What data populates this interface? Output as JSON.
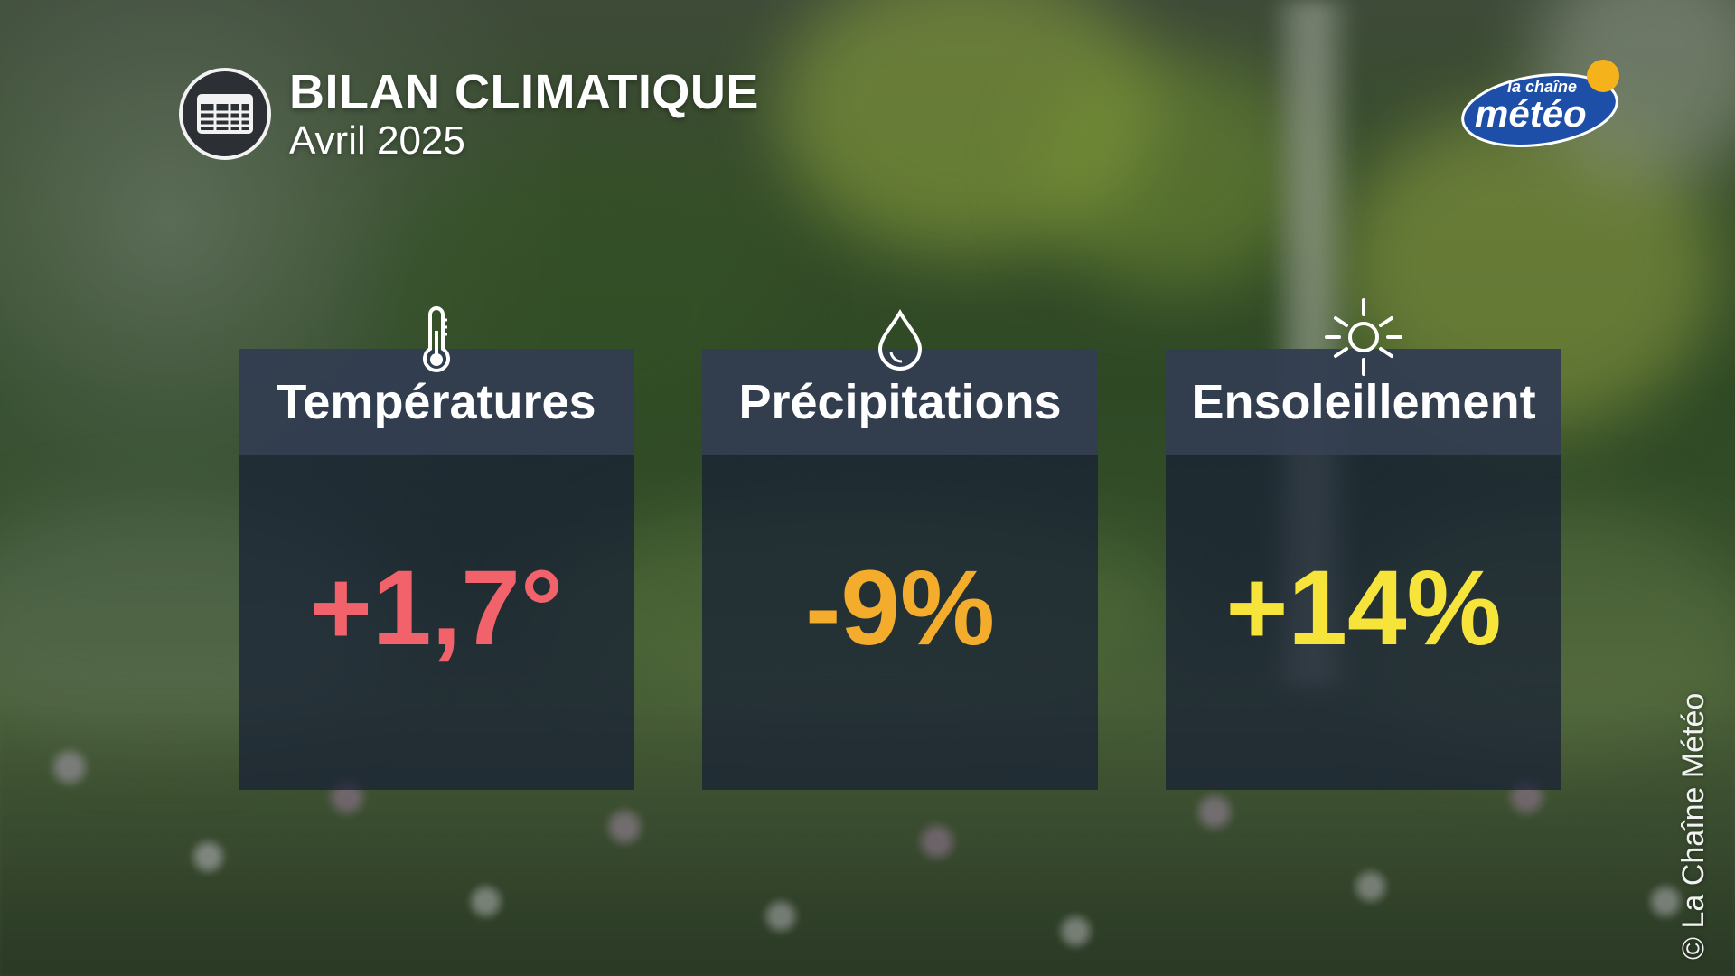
{
  "header": {
    "title": "BILAN CLIMATIQUE",
    "subtitle": "Avril 2025",
    "icon": "calendar-table-icon"
  },
  "logo": {
    "line1": "la chaîne",
    "line2": "météo",
    "colors": {
      "blue": "#1e4fa8",
      "sun": "#f5b21a"
    }
  },
  "cards": [
    {
      "label": "Températures",
      "value": "+1,7°",
      "icon": "thermometer-icon",
      "color": "#f2626a"
    },
    {
      "label": "Précipitations",
      "value": "-9%",
      "icon": "water-drop-icon",
      "color": "#f4ac2c"
    },
    {
      "label": "Ensoleillement",
      "value": "+14%",
      "icon": "sun-icon",
      "color": "#f7e43a"
    }
  ],
  "credit": "© La Chaîne Météo"
}
